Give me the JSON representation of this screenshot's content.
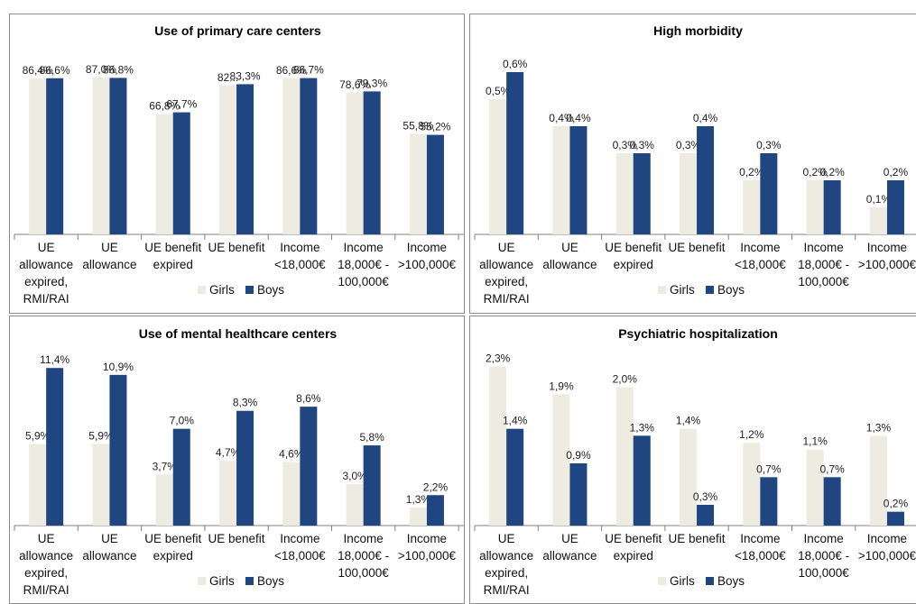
{
  "colors": {
    "girls": "#eeebe0",
    "boys": "#1f4680",
    "axis": "#808080"
  },
  "chart_data": [
    {
      "type": "bar",
      "title": "Use of primary care centers",
      "categories": [
        [
          "UE",
          "allowance",
          "expired,",
          "RMI/RAI"
        ],
        [
          "UE",
          "allowance"
        ],
        [
          "UE benefit",
          "expired"
        ],
        [
          "UE benefit"
        ],
        [
          "Income",
          "<18,000€"
        ],
        [
          "Income",
          "18,000€ -",
          "100,000€"
        ],
        [
          "Income",
          ">100,000€"
        ]
      ],
      "ylim": [
        0,
        90
      ],
      "legend": "bottom",
      "series": [
        {
          "name": "Girls",
          "values": [
            86.4,
            87.0,
            66.8,
            82.5,
            86.6,
            78.6,
            55.8
          ],
          "labels": [
            "86,4%",
            "87,0%",
            "66,8%",
            "82...",
            "86,6%",
            "78,6%",
            "55,8%"
          ]
        },
        {
          "name": "Boys",
          "values": [
            86.6,
            86.8,
            67.7,
            83.3,
            86.7,
            79.3,
            55.2
          ],
          "labels": [
            "86,6%",
            "86,8%",
            "67,7%",
            "83,3%",
            "86,7%",
            "79,3%",
            "55,2%"
          ]
        }
      ]
    },
    {
      "type": "bar",
      "title": "High morbidity",
      "categories": [
        [
          "UE",
          "allowance",
          "expired,",
          "RMI/RAI"
        ],
        [
          "UE",
          "allowance"
        ],
        [
          "UE benefit",
          "expired"
        ],
        [
          "UE benefit"
        ],
        [
          "Income",
          "<18,000€"
        ],
        [
          "Income",
          "18,000€ -",
          "100,000€"
        ],
        [
          "Income",
          ">100,000€"
        ]
      ],
      "ylim": [
        0,
        0.6
      ],
      "legend": "bottom",
      "series": [
        {
          "name": "Girls",
          "values": [
            0.5,
            0.4,
            0.3,
            0.3,
            0.2,
            0.2,
            0.1
          ],
          "labels": [
            "0,5%",
            "0,4%",
            "0,3%",
            "0,3%",
            "0,2%",
            "0,2%",
            "0,1%"
          ]
        },
        {
          "name": "Boys",
          "values": [
            0.6,
            0.4,
            0.3,
            0.4,
            0.3,
            0.2,
            0.2
          ],
          "labels": [
            "0,6%",
            "0,4%",
            "0,3%",
            "0,4%",
            "0,3%",
            "0,2%",
            "0,2%"
          ]
        }
      ]
    },
    {
      "type": "bar",
      "title": "Use of mental healthcare centers",
      "categories": [
        [
          "UE",
          "allowance",
          "expired,",
          "RMI/RAI"
        ],
        [
          "UE",
          "allowance"
        ],
        [
          "UE benefit",
          "expired"
        ],
        [
          "UE benefit"
        ],
        [
          "Income",
          "<18,000€"
        ],
        [
          "Income",
          "18,000€ -",
          "100,000€"
        ],
        [
          "Income",
          ">100,000€"
        ]
      ],
      "ylim": [
        0,
        12
      ],
      "legend": "bottom",
      "series": [
        {
          "name": "Girls",
          "values": [
            5.9,
            5.9,
            3.7,
            4.7,
            4.6,
            3.0,
            1.3
          ],
          "labels": [
            "5,9%",
            "5,9%",
            "3,7%",
            "4,7%",
            "4,6%",
            "3,0%",
            "1,3%"
          ]
        },
        {
          "name": "Boys",
          "values": [
            11.4,
            10.9,
            7.0,
            8.3,
            8.6,
            5.8,
            2.2
          ],
          "labels": [
            "11,4%",
            "10,9%",
            "7,0%",
            "8,3%",
            "8,6%",
            "5,8%",
            "2,2%"
          ]
        }
      ]
    },
    {
      "type": "bar",
      "title": "Psychiatric hospitalization",
      "categories": [
        [
          "UE",
          "allowance",
          "expired,",
          "RMI/RAI"
        ],
        [
          "UE",
          "allowance"
        ],
        [
          "UE benefit",
          "expired"
        ],
        [
          "UE benefit"
        ],
        [
          "Income",
          "<18,000€"
        ],
        [
          "Income",
          "18,000€ -",
          "100,000€"
        ],
        [
          "Income",
          ">100,000€"
        ]
      ],
      "ylim": [
        0,
        2.4
      ],
      "legend": "bottom",
      "series": [
        {
          "name": "Girls",
          "values": [
            2.3,
            1.9,
            2.0,
            1.4,
            1.2,
            1.1,
            1.3
          ],
          "labels": [
            "2,3%",
            "1,9%",
            "2,0%",
            "1,4%",
            "1,2%",
            "1,1%",
            "1,3%"
          ]
        },
        {
          "name": "Boys",
          "values": [
            1.4,
            0.9,
            1.3,
            0.3,
            0.7,
            0.7,
            0.2
          ],
          "labels": [
            "1,4%",
            "0,9%",
            "1,3%",
            "0,3%",
            "0,7%",
            "0,7%",
            "0,2%"
          ]
        }
      ]
    }
  ]
}
